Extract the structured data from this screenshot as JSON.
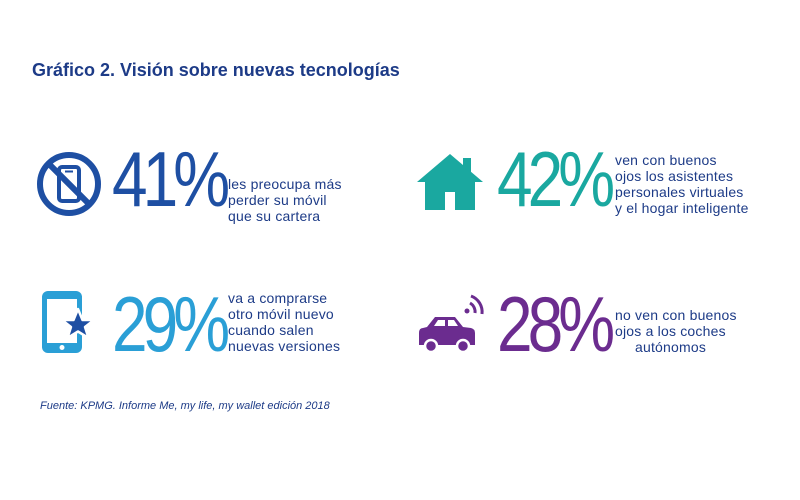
{
  "title": "Gráfico 2. Visión sobre nuevas tecnologías",
  "source": "Fuente: KPMG. Informe Me, my life, my wallet edición 2018",
  "chart_data": {
    "type": "infographic",
    "title": "Gráfico 2. Visión sobre nuevas tecnologías",
    "stats": [
      {
        "icon": "no-phone-icon",
        "value": 41,
        "label": "41%",
        "color": "#1e4fa3",
        "text": [
          "les preocupa más",
          "perder su móvil",
          "que su cartera"
        ]
      },
      {
        "icon": "house-icon",
        "value": 42,
        "label": "42%",
        "color": "#1aa8a0",
        "text": [
          "ven con buenos",
          "ojos los asistentes",
          "personales virtuales",
          "y el hogar inteligente"
        ]
      },
      {
        "icon": "tablet-star-icon",
        "value": 29,
        "label": "29%",
        "color": "#2a9fd6",
        "text": [
          "va a comprarse",
          "otro móvil nuevo",
          "cuando salen",
          "nuevas versiones"
        ]
      },
      {
        "icon": "connected-car-icon",
        "value": 28,
        "label": "28%",
        "color": "#6b2c8f",
        "text": [
          "no ven con buenos",
          "ojos a los coches",
          "autónomos"
        ]
      }
    ]
  }
}
